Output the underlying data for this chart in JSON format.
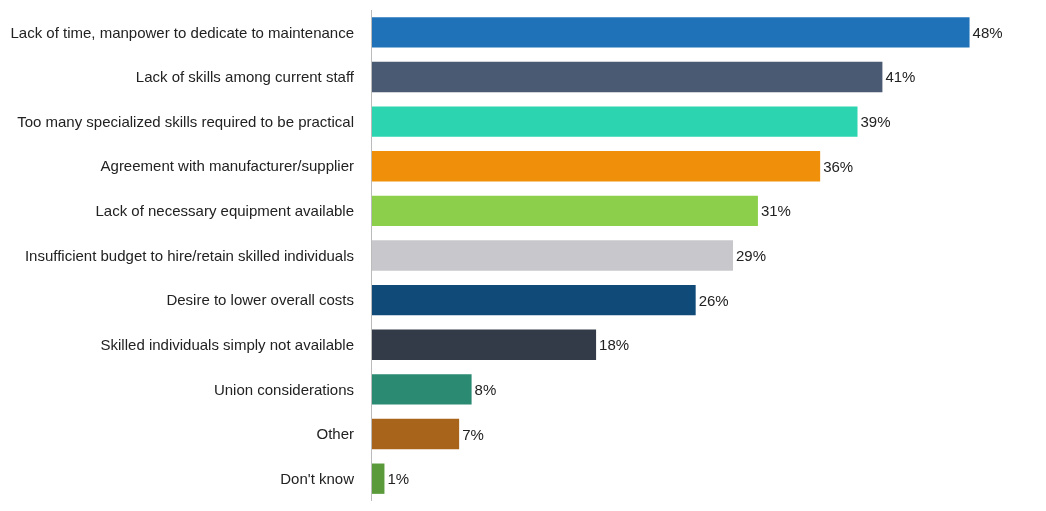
{
  "chart_data": {
    "type": "bar",
    "orientation": "horizontal",
    "data_labels": true,
    "value_labels": [
      "48%",
      "41%",
      "39%",
      "36%",
      "31%",
      "29%",
      "26%",
      "18%",
      "8%",
      "7%",
      "1%"
    ],
    "categories": [
      "Lack of time, manpower to dedicate to maintenance",
      "Lack of skills among current staff",
      "Too many specialized skills required to be practical",
      "Agreement with manufacturer/supplier",
      "Lack of necessary equipment available",
      "Insufficient budget to hire/retain skilled individuals",
      "Desire to lower overall costs",
      "Skilled individuals simply not available",
      "Union considerations",
      "Other",
      "Don't know"
    ],
    "values": [
      48,
      41,
      39,
      36,
      31,
      29,
      26,
      18,
      8,
      7,
      1
    ],
    "colors": [
      "#1f72b8",
      "#4a5a72",
      "#2dd4b0",
      "#f0900a",
      "#8ccf4a",
      "#c8c8cc",
      "#0f4a78",
      "#333a48",
      "#2a8a72",
      "#a8641a",
      "#5a9a3a"
    ],
    "legend": false
  }
}
